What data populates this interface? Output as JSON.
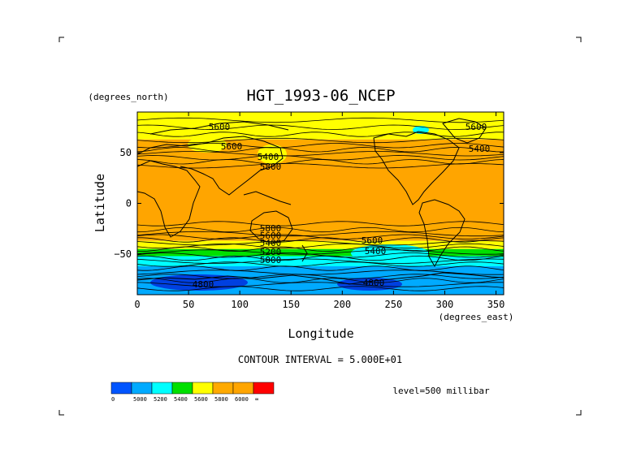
{
  "chart_data": {
    "type": "heatmap",
    "title": "HGT_1993-06_NCEP",
    "xlabel": "Longitude",
    "ylabel": "Latitude",
    "x_units": "(degrees_east)",
    "y_units": "(degrees_north)",
    "xlim": [
      0,
      357.5
    ],
    "ylim": [
      -90,
      90
    ],
    "x_ticks": [
      0,
      50,
      100,
      150,
      200,
      250,
      300,
      350
    ],
    "y_ticks": [
      50,
      0,
      -50
    ],
    "contour_interval_label": "CONTOUR INTERVAL = 5.000E+01",
    "level_label": "level=500 millibar",
    "color_levels": [
      {
        "min": null,
        "max": 4800,
        "color": "#0055ff"
      },
      {
        "min": 4800,
        "max": 5000,
        "color": "#00aaff"
      },
      {
        "min": 5000,
        "max": 5200,
        "color": "#00ffff"
      },
      {
        "min": 5200,
        "max": 5400,
        "color": "#00e000"
      },
      {
        "min": 5400,
        "max": 5600,
        "color": "#ffff00"
      },
      {
        "min": 5600,
        "max": 5800,
        "color": "#ffaa00"
      },
      {
        "min": 5800,
        "max": 6000,
        "color": "#ffa500"
      },
      {
        "min": 6000,
        "max": null,
        "color": "#ff0000"
      }
    ],
    "colorbar_labels": [
      "0",
      "5000",
      "5200",
      "5400",
      "5600",
      "5800",
      "6000",
      "∞"
    ],
    "latitude_bands": [
      {
        "lat_from": 90,
        "lat_to": 80,
        "band": 5400
      },
      {
        "lat_from": 80,
        "lat_to": 63,
        "band": 5400
      },
      {
        "lat_from": 63,
        "lat_to": 50,
        "band": 5600
      },
      {
        "lat_from": 50,
        "lat_to": 38,
        "band": 5600
      },
      {
        "lat_from": 38,
        "lat_to": -20,
        "band": 5800
      },
      {
        "lat_from": -20,
        "lat_to": -30,
        "band": 5600
      },
      {
        "lat_from": -30,
        "lat_to": -37,
        "band": 5600
      },
      {
        "lat_from": -37,
        "lat_to": -45,
        "band": 5400
      },
      {
        "lat_from": -45,
        "lat_to": -52,
        "band": 5200
      },
      {
        "lat_from": -52,
        "lat_to": -62,
        "band": 5000
      },
      {
        "lat_from": -62,
        "lat_to": -90,
        "band": 4800
      }
    ],
    "contour_labels": [
      "5600",
      "5600",
      "5400",
      "5600",
      "5400",
      "5800",
      "5800",
      "5600",
      "5400",
      "5200",
      "5000",
      "4800",
      "4800",
      "5600",
      "5400"
    ]
  }
}
